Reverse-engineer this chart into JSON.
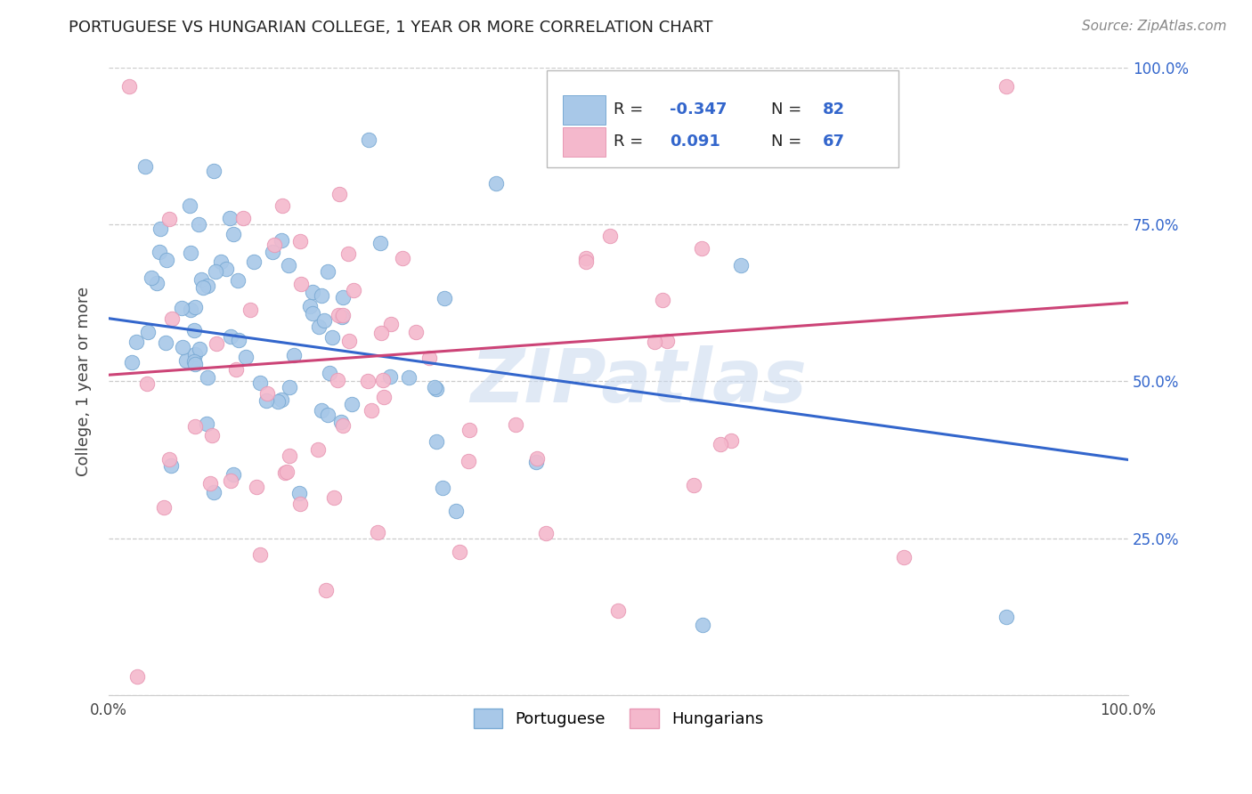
{
  "title": "PORTUGUESE VS HUNGARIAN COLLEGE, 1 YEAR OR MORE CORRELATION CHART",
  "source": "Source: ZipAtlas.com",
  "ylabel": "College, 1 year or more",
  "xlim": [
    0.0,
    1.0
  ],
  "ylim": [
    0.0,
    1.0
  ],
  "legend_R_blue": "-0.347",
  "legend_N_blue": "82",
  "legend_R_pink": "0.091",
  "legend_N_pink": "67",
  "blue_color": "#a8c8e8",
  "blue_edge_color": "#7aaad4",
  "pink_color": "#f4b8cc",
  "pink_edge_color": "#e898b4",
  "blue_line_color": "#3366cc",
  "pink_line_color": "#cc4477",
  "watermark": "ZIPatlas",
  "blue_trend": [
    0.6,
    0.375
  ],
  "pink_trend": [
    0.51,
    0.625
  ],
  "figsize": [
    14.06,
    8.92
  ],
  "dpi": 100,
  "grid_color": "#cccccc",
  "title_color": "#222222",
  "source_color": "#888888",
  "right_tick_color": "#3366cc",
  "ylabel_color": "#444444"
}
